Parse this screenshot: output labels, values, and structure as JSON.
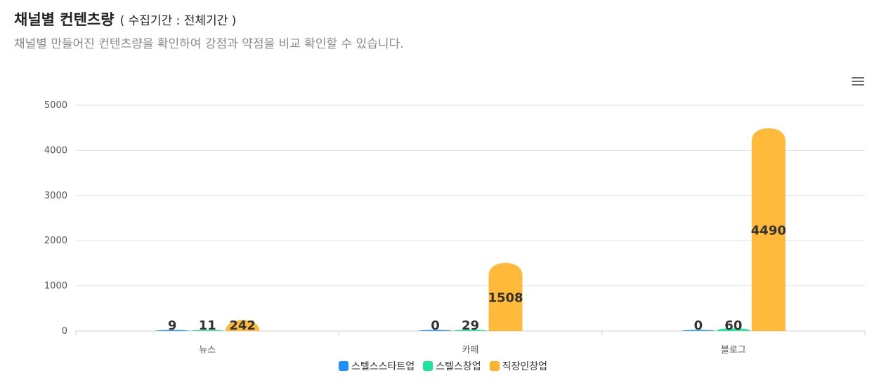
{
  "header": {
    "title": "채널별 컨텐츠량",
    "period": "( 수집기간 : 전체기간 )",
    "subtitle": "채널별 만들어진 컨텐츠량을 확인하여 강점과 약점을 비교 확인할 수 있습니다."
  },
  "toolbar": {
    "menu_icon": "hamburger-menu-icon"
  },
  "colors": {
    "grid": "#e0e0e0",
    "axis": "#cccccc"
  },
  "chart_data": {
    "type": "bar",
    "categories": [
      "뉴스",
      "카페",
      "블로그"
    ],
    "series": [
      {
        "name": "스텔스스타트업",
        "color": "#1e90ff",
        "values": [
          9,
          0,
          0
        ]
      },
      {
        "name": "스텔스창업",
        "color": "#1ee39a",
        "values": [
          11,
          29,
          60
        ]
      },
      {
        "name": "직장인창업",
        "color": "#ffb42b",
        "values": [
          242,
          1508,
          4490
        ]
      }
    ],
    "ylim": [
      0,
      5000
    ],
    "yticks": [
      0,
      1000,
      2000,
      3000,
      4000,
      5000
    ],
    "grid": true,
    "legend": "bottom-center",
    "data_labels": true
  }
}
